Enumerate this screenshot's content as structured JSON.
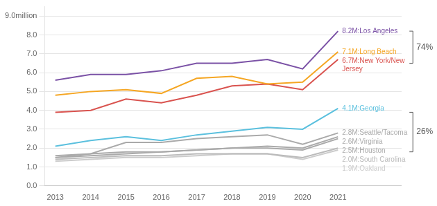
{
  "chart_data": {
    "type": "line",
    "x": [
      2013,
      2014,
      2015,
      2016,
      2017,
      2018,
      2019,
      2020,
      2021
    ],
    "series": [
      {
        "name": "Los Angeles",
        "label": "8.2M:Los Angeles",
        "color": "#7b52a6",
        "values": [
          5.6,
          5.9,
          5.9,
          6.1,
          6.5,
          6.5,
          6.7,
          6.2,
          8.2
        ]
      },
      {
        "name": "Long Beach",
        "label": "7.1M:Long Beach",
        "color": "#f5a623",
        "values": [
          4.8,
          5.0,
          5.1,
          4.9,
          5.7,
          5.8,
          5.4,
          5.5,
          7.1
        ]
      },
      {
        "name": "New York/New Jersey",
        "label": "6.7M:New York/New\nJersey",
        "color": "#d9534f",
        "values": [
          3.9,
          4.0,
          4.6,
          4.4,
          4.8,
          5.3,
          5.4,
          5.1,
          6.7
        ]
      },
      {
        "name": "Georgia",
        "label": "4.1M:Georgia",
        "color": "#5bc0de",
        "values": [
          2.1,
          2.4,
          2.6,
          2.4,
          2.7,
          2.9,
          3.1,
          3.0,
          4.1
        ]
      },
      {
        "name": "Seattle/Tacoma",
        "label": "2.8M:Seattle/Tacoma",
        "color": "#aaaaaa",
        "values": [
          1.6,
          1.7,
          2.3,
          2.3,
          2.5,
          2.6,
          2.7,
          2.2,
          2.8
        ]
      },
      {
        "name": "Virginia",
        "label": "2.6M:Virginia",
        "color": "#aaaaaa",
        "values": [
          1.5,
          1.7,
          1.8,
          1.8,
          1.9,
          2.0,
          2.1,
          2.0,
          2.6
        ]
      },
      {
        "name": "Houston",
        "label": "2.5M:Houston",
        "color": "#aaaaaa",
        "values": [
          1.5,
          1.6,
          1.7,
          1.8,
          1.9,
          2.0,
          2.0,
          1.9,
          2.5
        ]
      },
      {
        "name": "South Carolina",
        "label": "2.0M:South Carolina",
        "color": "#bbbbbb",
        "values": [
          1.4,
          1.5,
          1.6,
          1.6,
          1.7,
          1.7,
          1.7,
          1.5,
          2.0
        ]
      },
      {
        "name": "Oakland",
        "label": "1.9M:Oakland",
        "color": "#cccccc",
        "values": [
          1.3,
          1.4,
          1.5,
          1.5,
          1.6,
          1.7,
          1.7,
          1.4,
          1.9
        ]
      }
    ],
    "xlim": [
      2012.7,
      2022.8
    ],
    "xticks": [
      2013,
      2014,
      2015,
      2016,
      2017,
      2018,
      2019,
      2020,
      2021
    ],
    "ylim": [
      0.0,
      9.5
    ],
    "yticks": [
      {
        "value": 0,
        "label": "0.0"
      },
      {
        "value": 1,
        "label": "1.0"
      },
      {
        "value": 2,
        "label": "2.0"
      },
      {
        "value": 3,
        "label": "3.0"
      },
      {
        "value": 4,
        "label": "4.0"
      },
      {
        "value": 5,
        "label": "5.0"
      },
      {
        "value": 6,
        "label": "6.0"
      },
      {
        "value": 7,
        "label": "7.0"
      },
      {
        "value": 8,
        "label": "8.0"
      },
      {
        "value": 9,
        "label": "9.0million"
      }
    ],
    "grid": "y",
    "annotations": [
      {
        "text": "74%",
        "ymin": 6.5,
        "ymax": 8.2
      },
      {
        "text": "26%",
        "ymin": 1.8,
        "ymax": 3.9
      }
    ]
  }
}
